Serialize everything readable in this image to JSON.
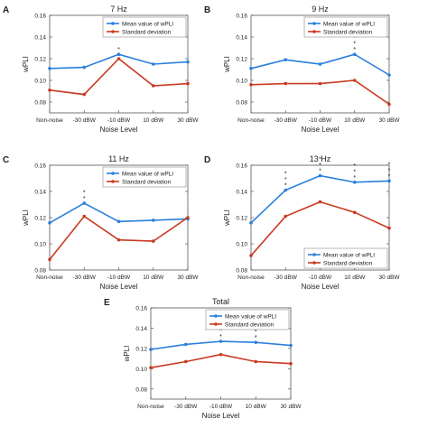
{
  "colors": {
    "mean": "#2a7fdc",
    "sd": "#c93a21",
    "axis": "#555555"
  },
  "chart_data": [
    {
      "panel": "A",
      "type": "line",
      "title": "7 Hz",
      "xlabel": "Noise Level",
      "ylabel": "wPLI",
      "categories": [
        "Non-noise",
        "-30 dBW",
        "-10 dBW",
        "10 dBW",
        "30 dBW"
      ],
      "ylim": [
        0.07,
        0.16
      ],
      "yticks": [
        0.08,
        0.1,
        0.12,
        0.14,
        0.16
      ],
      "ytick_labels": [
        "0.08",
        "0.10",
        "0.12",
        "0.14",
        "0.16"
      ],
      "legend_position": "top-right",
      "series": [
        {
          "name": "Mean value of wPLI",
          "color_key": "mean",
          "values": [
            0.111,
            0.112,
            0.124,
            0.115,
            0.117
          ]
        },
        {
          "name": "Standard deviation",
          "color_key": "sd",
          "values": [
            0.091,
            0.087,
            0.12,
            0.095,
            0.097
          ]
        }
      ],
      "annotations": [
        {
          "category_index": 2,
          "text": "*",
          "count": 1
        }
      ]
    },
    {
      "panel": "B",
      "type": "line",
      "title": "9 Hz",
      "xlabel": "Noise Level",
      "ylabel": "wPLI",
      "categories": [
        "Non-noise",
        "-30 dBW",
        "-10 dBW",
        "10 dBW",
        "30 dBW"
      ],
      "ylim": [
        0.07,
        0.16
      ],
      "yticks": [
        0.08,
        0.1,
        0.12,
        0.14,
        0.16
      ],
      "ytick_labels": [
        "0.08",
        "0.10",
        "0.12",
        "0.14",
        "0.16"
      ],
      "legend_position": "top-right",
      "series": [
        {
          "name": "Mean value of wPLI",
          "color_key": "mean",
          "values": [
            0.111,
            0.119,
            0.115,
            0.124,
            0.105
          ]
        },
        {
          "name": "Standard deviation",
          "color_key": "sd",
          "values": [
            0.096,
            0.097,
            0.097,
            0.1,
            0.078
          ]
        }
      ],
      "annotations": [
        {
          "category_index": 3,
          "text": "*",
          "count": 3
        }
      ]
    },
    {
      "panel": "C",
      "type": "line",
      "title": "11 Hz",
      "xlabel": "Noise Level",
      "ylabel": "wPLI",
      "categories": [
        "Non-noise",
        "-30 dBW",
        "-10 dBW",
        "10 dBW",
        "30 dBW"
      ],
      "ylim": [
        0.08,
        0.16
      ],
      "yticks": [
        0.08,
        0.1,
        0.12,
        0.14,
        0.16
      ],
      "ytick_labels": [
        "0.08",
        "0.10",
        "0.12",
        "0.14",
        "0.16"
      ],
      "legend_position": "top-right",
      "series": [
        {
          "name": "Mean value of wPLI",
          "color_key": "mean",
          "values": [
            0.116,
            0.131,
            0.117,
            0.118,
            0.119
          ]
        },
        {
          "name": "Standard deviation",
          "color_key": "sd",
          "values": [
            0.088,
            0.121,
            0.103,
            0.102,
            0.12
          ]
        }
      ],
      "annotations": [
        {
          "category_index": 1,
          "text": "*",
          "count": 2
        }
      ]
    },
    {
      "panel": "D",
      "type": "line",
      "title": "13 Hz",
      "xlabel": "Noise Level",
      "ylabel": "wPLI",
      "categories": [
        "Non-noise",
        "-30 dBW",
        "-10 dBW",
        "10 dBW",
        "30 dBW"
      ],
      "ylim": [
        0.08,
        0.16
      ],
      "yticks": [
        0.08,
        0.1,
        0.12,
        0.14,
        0.16
      ],
      "ytick_labels": [
        "0.08",
        "0.10",
        "0.12",
        "0.14",
        "0.16"
      ],
      "legend_position": "bottom-right",
      "series": [
        {
          "name": "Mean value of wPLI",
          "color_key": "mean",
          "values": [
            0.116,
            0.141,
            0.152,
            0.147,
            0.148
          ]
        },
        {
          "name": "Standard deviation",
          "color_key": "sd",
          "values": [
            0.091,
            0.121,
            0.132,
            0.124,
            0.112
          ]
        }
      ],
      "annotations": [
        {
          "category_index": 1,
          "text": "*",
          "count": 3
        },
        {
          "category_index": 2,
          "text": "*",
          "count": 3
        },
        {
          "category_index": 3,
          "text": "*",
          "count": 3
        },
        {
          "category_index": 4,
          "text": "*",
          "count": 3
        }
      ]
    },
    {
      "panel": "E",
      "type": "line",
      "title": "Total",
      "xlabel": "Noise Level",
      "ylabel": "wPLI",
      "categories": [
        "Non-noise",
        "-30 dBW",
        "-10 dBW",
        "10 dBW",
        "30 dBW"
      ],
      "ylim": [
        0.07,
        0.16
      ],
      "yticks": [
        0.08,
        0.1,
        0.12,
        0.14,
        0.16
      ],
      "ytick_labels": [
        "0.08",
        "0.10",
        "0.12",
        "0.14",
        "0.16"
      ],
      "legend_position": "top-right",
      "series": [
        {
          "name": "Mean value of wPLI",
          "color_key": "mean",
          "values": [
            0.119,
            0.124,
            0.127,
            0.126,
            0.123
          ]
        },
        {
          "name": "Standard deviation",
          "color_key": "sd",
          "values": [
            0.101,
            0.107,
            0.114,
            0.107,
            0.105
          ]
        }
      ],
      "annotations": [
        {
          "category_index": 2,
          "text": "*",
          "count": 2
        },
        {
          "category_index": 3,
          "text": "*",
          "count": 2
        }
      ]
    }
  ]
}
